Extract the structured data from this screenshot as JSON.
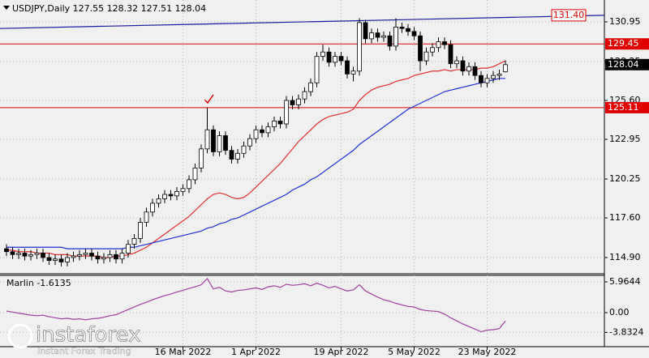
{
  "chart_data": [
    {
      "type": "candlestick",
      "title": "USDJPY,Daily  127.55 128.32 127.51 128.04",
      "categories": [
        null,
        null,
        null,
        null,
        null,
        null,
        null,
        null,
        null,
        null,
        null,
        null,
        null,
        null,
        null,
        null,
        null,
        null,
        null,
        null,
        null,
        null,
        null,
        null,
        null,
        null,
        null,
        null,
        null,
        "16 Mar 2022",
        null,
        null,
        null,
        null,
        null,
        null,
        null,
        null,
        null,
        null,
        null,
        "1 Apr 2022",
        null,
        null,
        null,
        null,
        null,
        null,
        null,
        null,
        null,
        null,
        null,
        null,
        null,
        "19 Apr 2022",
        null,
        null,
        null,
        null,
        null,
        null,
        null,
        null,
        null,
        null,
        null,
        "5 May 2022",
        null,
        null,
        null,
        null,
        null,
        null,
        null,
        null,
        null,
        null,
        null,
        "23 May 2022",
        null,
        null,
        null
      ],
      "open": [
        115.5,
        115.3,
        115.1,
        115.2,
        115.0,
        115.1,
        115.2,
        114.9,
        114.7,
        114.8,
        114.6,
        114.9,
        115.0,
        115.1,
        115.2,
        115.0,
        114.8,
        114.9,
        115.1,
        114.8,
        115.2,
        115.8,
        116.2,
        117.3,
        118.0,
        118.6,
        118.9,
        119.2,
        119.1,
        119.4,
        119.6,
        120.2,
        121.0,
        122.3,
        123.6,
        122.1,
        123.2,
        122.2,
        121.6,
        122.0,
        122.5,
        123.0,
        123.6,
        123.4,
        123.8,
        124.2,
        124.0,
        125.6,
        125.3,
        125.7,
        126.2,
        126.8,
        128.6,
        128.9,
        128.2,
        128.6,
        128.3,
        127.4,
        127.6,
        130.9,
        129.8,
        130.2,
        129.9,
        130.0,
        129.3,
        130.6,
        130.5,
        130.3,
        130.0,
        128.3,
        128.9,
        129.2,
        129.6,
        129.4,
        128.1,
        128.3,
        127.6,
        127.9,
        127.3,
        126.8,
        127.1,
        127.3,
        127.55
      ],
      "high": [
        115.8,
        115.6,
        115.5,
        115.5,
        115.4,
        115.5,
        115.5,
        115.2,
        115.1,
        115.1,
        115.2,
        115.3,
        115.4,
        115.5,
        115.5,
        115.3,
        115.2,
        115.4,
        115.4,
        115.5,
        116.1,
        116.5,
        117.6,
        118.3,
        118.9,
        119.2,
        119.5,
        119.5,
        119.7,
        119.9,
        120.5,
        121.3,
        122.6,
        125.1,
        123.9,
        123.5,
        123.5,
        122.5,
        122.3,
        122.8,
        123.3,
        123.9,
        123.9,
        124.1,
        124.5,
        124.5,
        125.9,
        125.9,
        126.0,
        126.5,
        127.1,
        128.9,
        129.4,
        129.2,
        128.9,
        128.9,
        128.6,
        127.9,
        131.2,
        131.1,
        130.5,
        130.5,
        130.3,
        130.3,
        131.2,
        130.9,
        130.8,
        130.6,
        130.3,
        129.2,
        129.5,
        129.9,
        129.9,
        129.7,
        128.6,
        128.6,
        128.2,
        128.2,
        127.6,
        127.4,
        127.6,
        127.7,
        128.32
      ],
      "low": [
        115.0,
        114.8,
        114.8,
        114.7,
        114.7,
        114.8,
        114.6,
        114.4,
        114.4,
        114.3,
        114.3,
        114.6,
        114.7,
        114.8,
        114.7,
        114.5,
        114.5,
        114.6,
        114.5,
        114.5,
        114.9,
        115.5,
        115.9,
        117.0,
        117.7,
        118.3,
        118.6,
        118.8,
        118.8,
        119.1,
        119.3,
        119.9,
        120.7,
        122.0,
        121.8,
        121.8,
        121.9,
        121.3,
        121.3,
        121.7,
        122.2,
        122.7,
        123.1,
        123.1,
        123.5,
        123.7,
        123.7,
        125.0,
        125.0,
        125.4,
        125.9,
        126.5,
        128.3,
        127.9,
        127.9,
        128.0,
        127.1,
        126.9,
        127.3,
        129.5,
        129.5,
        129.6,
        129.6,
        129.0,
        129.0,
        130.2,
        130.0,
        129.7,
        127.6,
        128.0,
        128.6,
        128.9,
        129.1,
        127.8,
        127.8,
        127.3,
        127.3,
        127.0,
        126.5,
        126.5,
        126.8,
        127.0,
        127.51
      ],
      "close": [
        115.3,
        115.1,
        115.2,
        115.0,
        115.1,
        115.2,
        114.9,
        114.7,
        114.8,
        114.6,
        114.9,
        115.0,
        115.1,
        115.2,
        115.0,
        114.8,
        114.9,
        115.1,
        114.8,
        115.2,
        115.8,
        116.2,
        117.3,
        118.0,
        118.6,
        118.9,
        119.2,
        119.1,
        119.4,
        119.6,
        120.2,
        121.0,
        122.3,
        123.6,
        122.1,
        123.2,
        122.2,
        121.6,
        122.0,
        122.5,
        123.0,
        123.6,
        123.4,
        123.8,
        124.2,
        124.0,
        125.6,
        125.3,
        125.7,
        126.2,
        126.8,
        128.6,
        128.9,
        128.2,
        128.6,
        128.3,
        127.4,
        127.6,
        130.9,
        129.8,
        130.2,
        129.9,
        130.0,
        129.3,
        130.6,
        130.5,
        130.3,
        130.0,
        128.3,
        128.9,
        129.2,
        129.6,
        129.4,
        128.1,
        128.3,
        127.6,
        127.9,
        127.3,
        126.8,
        127.1,
        127.3,
        127.4,
        128.04
      ],
      "up_color": "#ffffff",
      "down_color": "#000000",
      "lines": [
        {
          "color": "#e03030",
          "values": [
            115.4,
            115.4,
            115.3,
            115.3,
            115.3,
            115.2,
            115.2,
            115.2,
            115.1,
            115.1,
            115.1,
            115.0,
            115.0,
            115.0,
            115.0,
            115.0,
            114.9,
            114.9,
            115.0,
            115.0,
            115.1,
            115.2,
            115.4,
            115.6,
            115.9,
            116.2,
            116.5,
            116.8,
            117.1,
            117.4,
            117.7,
            118.1,
            118.5,
            118.9,
            119.2,
            119.3,
            119.2,
            119.0,
            118.9,
            119.0,
            119.3,
            119.7,
            120.1,
            120.5,
            120.9,
            121.3,
            121.8,
            122.3,
            122.8,
            123.2,
            123.6,
            124.0,
            124.3,
            124.5,
            124.6,
            124.7,
            124.8,
            125.0,
            125.6,
            126.0,
            126.3,
            126.5,
            126.6,
            126.7,
            126.9,
            127.0,
            127.1,
            127.3,
            127.4,
            127.5,
            127.6,
            127.6,
            127.7,
            127.6,
            127.7,
            127.7,
            127.7,
            127.7,
            127.8,
            127.8,
            127.9,
            128.1,
            128.3
          ]
        },
        {
          "color": "#2030d0",
          "values": [
            115.6,
            115.6,
            115.6,
            115.6,
            115.6,
            115.6,
            115.6,
            115.6,
            115.6,
            115.6,
            115.5,
            115.5,
            115.5,
            115.5,
            115.5,
            115.5,
            115.5,
            115.5,
            115.5,
            115.5,
            115.6,
            115.6,
            115.7,
            115.8,
            115.9,
            116.0,
            116.1,
            116.2,
            116.3,
            116.4,
            116.5,
            116.6,
            116.7,
            116.9,
            117.0,
            117.2,
            117.3,
            117.5,
            117.6,
            117.8,
            118.0,
            118.2,
            118.4,
            118.6,
            118.8,
            119.0,
            119.2,
            119.5,
            119.7,
            119.9,
            120.2,
            120.4,
            120.7,
            121.0,
            121.3,
            121.6,
            121.9,
            122.2,
            122.6,
            122.9,
            123.2,
            123.5,
            123.8,
            124.1,
            124.4,
            124.7,
            125.0,
            125.2,
            125.4,
            125.6,
            125.8,
            126.0,
            126.2,
            126.3,
            126.4,
            126.5,
            126.6,
            126.7,
            126.8,
            126.9,
            127.0,
            127.1,
            127.1
          ]
        }
      ],
      "levels": [
        {
          "value": 129.45,
          "color": "#e00000"
        },
        {
          "value": 125.11,
          "color": "#e00000"
        }
      ],
      "trend_line": {
        "start": 130.5,
        "end": {
          "value": 131.4,
          "label": "131.40"
        },
        "color": "#1a1aa0",
        "label_color": "#e00000"
      },
      "last_price": 128.04,
      "ylim": [
        113.85,
        131.89
      ],
      "yticks": [
        130.95,
        128.25,
        {
          "value": 125.6,
          "label": "125.60"
        },
        122.95,
        120.25,
        {
          "value": 117.6,
          "label": "117.60"
        },
        {
          "value": 114.9,
          "label": "114.90"
        }
      ],
      "grid": true
    },
    {
      "type": "line",
      "title": "Marlin -1.6135",
      "values": [
        0.3,
        0.1,
        -0.1,
        -0.3,
        -0.5,
        -0.6,
        -0.5,
        -0.8,
        -1.0,
        -1.2,
        -1.1,
        -1.3,
        -1.2,
        -1.4,
        -1.2,
        -1.1,
        -0.9,
        -0.6,
        -0.4,
        0.1,
        0.6,
        1.1,
        1.6,
        2.0,
        2.5,
        2.9,
        3.3,
        3.6,
        4.0,
        4.3,
        4.7,
        5.0,
        5.4,
        6.6,
        4.6,
        4.9,
        4.2,
        4.0,
        4.3,
        4.4,
        4.6,
        4.8,
        4.5,
        5.0,
        5.2,
        4.9,
        5.5,
        5.3,
        5.4,
        5.6,
        5.2,
        5.7,
        5.3,
        4.8,
        5.1,
        4.6,
        4.2,
        4.4,
        5.4,
        4.2,
        3.6,
        3.0,
        2.5,
        2.2,
        1.8,
        1.5,
        1.2,
        1.1,
        0.6,
        0.4,
        0.3,
        0.2,
        -0.3,
        -1.0,
        -1.6,
        -2.2,
        -2.7,
        -3.2,
        -3.7,
        -3.4,
        -3.3,
        -3.1,
        -1.6135
      ],
      "color": "#a040a0",
      "ylim": [
        -6.44,
        7.06
      ],
      "yticks": [
        5.9644,
        {
          "value": 0,
          "label": "0.00"
        },
        -3.8324
      ],
      "grid": true
    }
  ],
  "watermark": {
    "brand": "instaforex",
    "slogan": "Instant Forex Trading"
  }
}
